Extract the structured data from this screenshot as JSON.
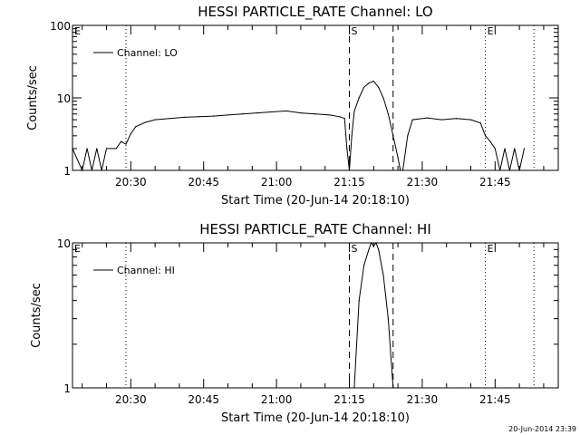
{
  "colors": {
    "line": "#000000",
    "background": "#ffffff"
  },
  "footer": {
    "timestamp": "20-Jun-2014 23:39"
  },
  "chart_data": [
    {
      "type": "line",
      "title": "HESSI PARTICLE_RATE Channel: LO",
      "xlabel": "Start Time (20-Jun-14 20:18:10)",
      "ylabel": "Counts/sec",
      "yscale": "log",
      "ylim": [
        1,
        100
      ],
      "xlim": [
        "20:18",
        "21:58"
      ],
      "yticks": [
        "1",
        "10",
        "100"
      ],
      "xticks": [
        "20:30",
        "20:45",
        "21:00",
        "21:15",
        "21:30",
        "21:45"
      ],
      "legend": "top-left",
      "grid": false,
      "series": [
        {
          "name": "Channel: LO",
          "x": [
            "20:18",
            "20:20",
            "20:21",
            "20:22",
            "20:23",
            "20:24",
            "20:25",
            "20:27",
            "20:28",
            "20:29",
            "20:30",
            "20:31",
            "20:33",
            "20:35",
            "20:38",
            "20:41",
            "20:44",
            "20:47",
            "20:50",
            "20:53",
            "20:56",
            "20:59",
            "21:02",
            "21:05",
            "21:08",
            "21:11",
            "21:13",
            "21:14",
            "21:14.5",
            "21:15",
            "21:15.5",
            "21:16",
            "21:17",
            "21:18",
            "21:19",
            "21:20",
            "21:21",
            "21:22",
            "21:23",
            "21:24",
            "21:25",
            "21:25.5",
            "21:26",
            "21:27",
            "21:28",
            "21:31",
            "21:34",
            "21:37",
            "21:40",
            "21:42",
            "21:43",
            "21:44",
            "21:45",
            "21:46",
            "21:47",
            "21:48",
            "21:49",
            "21:50",
            "21:51"
          ],
          "values": [
            2.0,
            1.0,
            2.0,
            1.0,
            2.0,
            1.0,
            2.0,
            2.0,
            2.5,
            2.3,
            3.2,
            4.0,
            4.6,
            5.0,
            5.2,
            5.4,
            5.5,
            5.6,
            5.8,
            6.0,
            6.2,
            6.4,
            6.6,
            6.2,
            6.0,
            5.8,
            5.5,
            5.2,
            2.0,
            1.0,
            3.0,
            6.5,
            10,
            14,
            16,
            17,
            14,
            10,
            6,
            3,
            1.5,
            1.0,
            1.0,
            3.0,
            5.0,
            5.3,
            5.0,
            5.2,
            5.0,
            4.5,
            3.0,
            2.5,
            2.0,
            1.0,
            2.0,
            1.0,
            2.0,
            1.0,
            2.0
          ]
        }
      ],
      "annotations": [
        {
          "label": "E",
          "x": "20:18",
          "style": "none"
        },
        {
          "label": "",
          "x": "20:29",
          "style": "dotted"
        },
        {
          "label": "S",
          "x": "21:15",
          "style": "dashed"
        },
        {
          "label": "",
          "x": "21:24",
          "style": "dashed"
        },
        {
          "label": "E",
          "x": "21:43",
          "style": "dotted"
        },
        {
          "label": "",
          "x": "21:53",
          "style": "dotted"
        }
      ]
    },
    {
      "type": "line",
      "title": "HESSI PARTICLE_RATE Channel: HI",
      "xlabel": "Start Time (20-Jun-14 20:18:10)",
      "ylabel": "Counts/sec",
      "yscale": "log",
      "ylim": [
        1,
        10
      ],
      "xlim": [
        "20:18",
        "21:58"
      ],
      "yticks": [
        "1",
        "10"
      ],
      "xticks": [
        "20:30",
        "20:45",
        "21:00",
        "21:15",
        "21:30",
        "21:45"
      ],
      "legend": "top-left",
      "grid": false,
      "series": [
        {
          "name": "Channel: HI",
          "x": [
            "21:16",
            "21:17",
            "21:18",
            "21:19",
            "21:19.5",
            "21:20",
            "21:20.5",
            "21:21",
            "21:22",
            "21:23",
            "21:24"
          ],
          "values": [
            1.0,
            4.0,
            7.0,
            9.0,
            10,
            9.5,
            10,
            9.0,
            6.0,
            3.0,
            1.0
          ]
        }
      ],
      "annotations": [
        {
          "label": "E",
          "x": "20:18",
          "style": "none"
        },
        {
          "label": "",
          "x": "20:29",
          "style": "dotted"
        },
        {
          "label": "S",
          "x": "21:15",
          "style": "dashed"
        },
        {
          "label": "",
          "x": "21:24",
          "style": "dashed"
        },
        {
          "label": "E",
          "x": "21:43",
          "style": "dotted"
        },
        {
          "label": "",
          "x": "21:53",
          "style": "dotted"
        }
      ]
    }
  ]
}
